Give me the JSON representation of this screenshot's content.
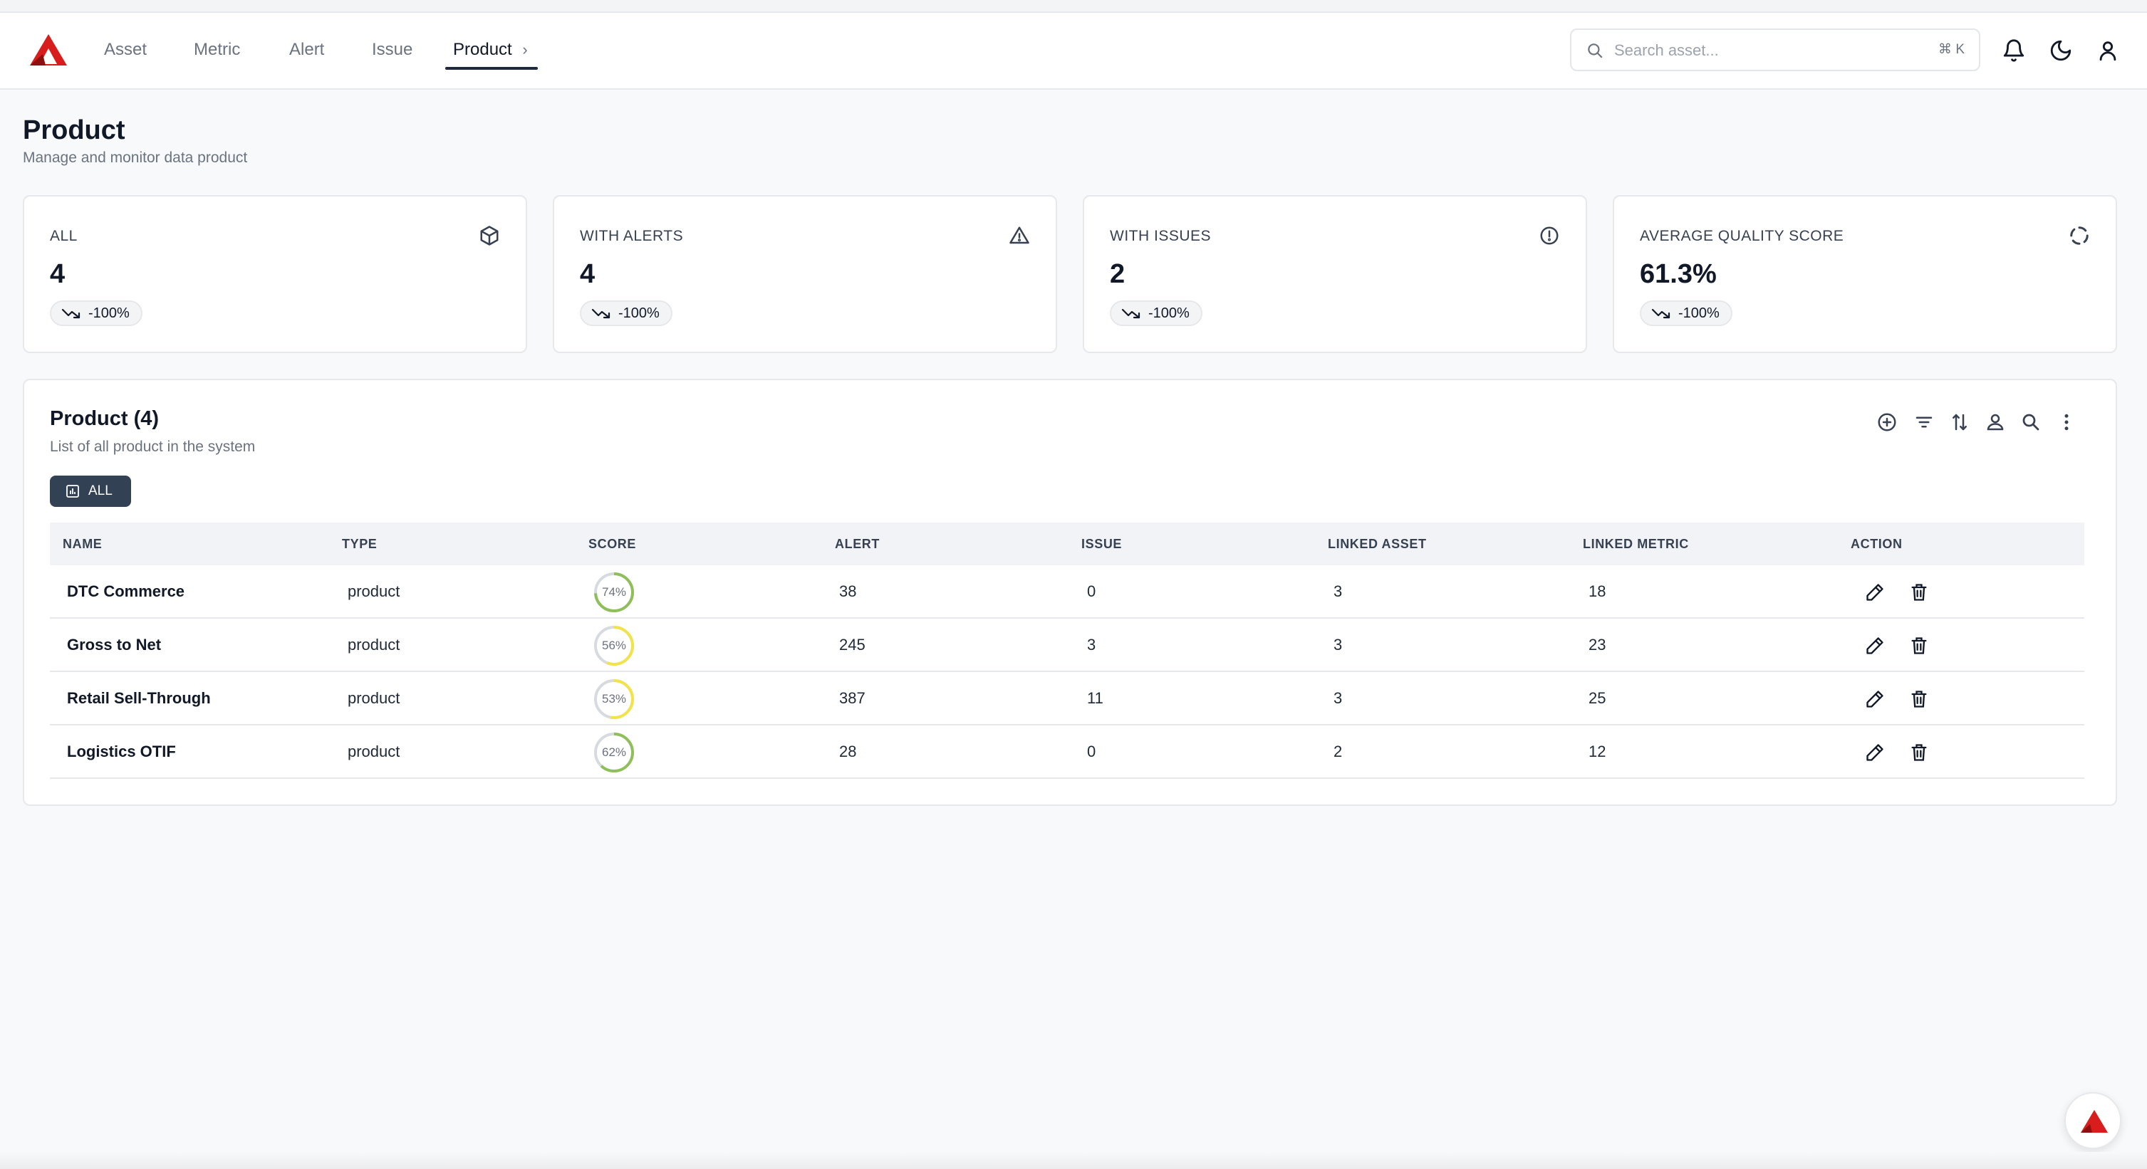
{
  "nav": {
    "items": [
      {
        "label": "Asset"
      },
      {
        "label": "Metric"
      },
      {
        "label": "Alert"
      },
      {
        "label": "Issue"
      },
      {
        "label": "Product"
      }
    ],
    "active_chevron": "›",
    "search_placeholder": "Search asset...",
    "search_shortcut": "⌘ K",
    "icons": [
      "bell-icon",
      "moon-icon",
      "user-icon"
    ]
  },
  "page": {
    "title": "Product",
    "subtitle": "Manage and monitor data product"
  },
  "stats": [
    {
      "label": "ALL",
      "value": "4",
      "change": "-100%",
      "icon": "cube-icon"
    },
    {
      "label": "WITH ALERTS",
      "value": "4",
      "change": "-100%",
      "icon": "warning-icon"
    },
    {
      "label": "WITH ISSUES",
      "value": "2",
      "change": "-100%",
      "icon": "alert-circle-icon"
    },
    {
      "label": "AVERAGE QUALITY SCORE",
      "value": "61.3%",
      "change": "-100%",
      "icon": "loader-icon"
    }
  ],
  "panel": {
    "title": "Product (4)",
    "subtitle": "List of all product in the system",
    "filter_label": "ALL",
    "tools": [
      "add-circle-icon",
      "filter-icon",
      "sort-icon",
      "user-filter-icon",
      "search-icon",
      "more-vertical-icon"
    ]
  },
  "table": {
    "columns": [
      "NAME",
      "TYPE",
      "SCORE",
      "ALERT",
      "ISSUE",
      "LINKED ASSET",
      "LINKED METRIC",
      "ACTION"
    ],
    "rows": [
      {
        "name": "DTC Commerce",
        "type": "product",
        "score": 74,
        "score_label": "74%",
        "alert": "38",
        "issue": "0",
        "linked_asset": "3",
        "linked_metric": "18"
      },
      {
        "name": "Gross to Net",
        "type": "product",
        "score": 56,
        "score_label": "56%",
        "alert": "245",
        "issue": "3",
        "linked_asset": "3",
        "linked_metric": "23"
      },
      {
        "name": "Retail Sell-Through",
        "type": "product",
        "score": 53,
        "score_label": "53%",
        "alert": "387",
        "issue": "11",
        "linked_asset": "3",
        "linked_metric": "25"
      },
      {
        "name": "Logistics OTIF",
        "type": "product",
        "score": 62,
        "score_label": "62%",
        "alert": "28",
        "issue": "0",
        "linked_asset": "2",
        "linked_metric": "12"
      }
    ]
  },
  "colors": {
    "brand_red": "#d91c1c",
    "score_green": "#8fbf5a",
    "score_yellow": "#f2e34a",
    "ring_track": "#d7dbe0",
    "dark_button": "#334155"
  }
}
